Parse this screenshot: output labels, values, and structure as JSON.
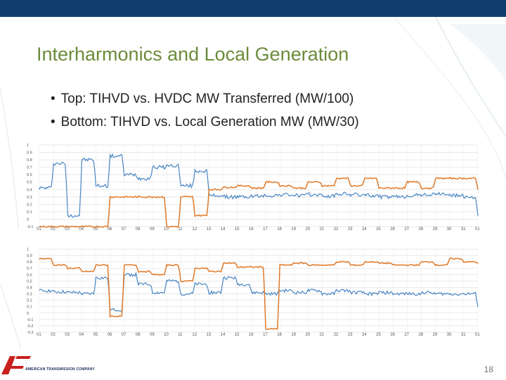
{
  "slide": {
    "title": "Interharmonics and Local Generation",
    "bullets": [
      "Top: TIHVD vs. HVDC MW Transferred (MW/100)",
      "Bottom: TIHVD vs. Local Generation MW (MW/30)"
    ],
    "page_number": "18",
    "logo_text": "AMERICAN TRANSMISSION COMPANY",
    "colors": {
      "accent_title": "#6c8b3b",
      "top_bar": "#0f3d6e",
      "series_blue": "#4a86c5",
      "series_orange": "#e07a2a",
      "logo_red": "#c8201e"
    }
  },
  "chart_data": [
    {
      "type": "line",
      "categories": [
        "01",
        "02",
        "03",
        "04",
        "05",
        "06",
        "07",
        "08",
        "09",
        "10",
        "11",
        "12",
        "13",
        "14",
        "15",
        "16",
        "17",
        "18",
        "19",
        "20",
        "21",
        "22",
        "23",
        "24",
        "25",
        "26",
        "27",
        "28",
        "29",
        "30",
        "31",
        "01"
      ],
      "ylim": [
        -0.1,
        1
      ],
      "y_ticks": [
        "1",
        "0.9",
        "0.8",
        "0.7",
        "0.6",
        "0.5",
        "0.4",
        "0.3",
        "0.2",
        "0.1",
        "0",
        "-0.1"
      ],
      "grid": true,
      "series": [
        {
          "color": "#4a86c5",
          "values": [
            0.42,
            0.75,
            0.05,
            0.8,
            0.45,
            0.85,
            0.6,
            0.55,
            0.7,
            0.72,
            0.45,
            0.65,
            0.32,
            0.3,
            0.3,
            0.31,
            0.32,
            0.33,
            0.32,
            0.33,
            0.31,
            0.34,
            0.33,
            0.32,
            0.3,
            0.3,
            0.32,
            0.33,
            0.34,
            0.32,
            0.3,
            0.05
          ]
        },
        {
          "color": "#e07a2a",
          "values": [
            -0.1,
            -0.1,
            -0.1,
            -0.1,
            -0.1,
            0.3,
            0.3,
            0.3,
            0.3,
            -0.1,
            0.3,
            0.05,
            0.4,
            0.43,
            0.45,
            0.42,
            0.5,
            0.45,
            0.42,
            0.5,
            0.45,
            0.55,
            0.45,
            0.55,
            0.42,
            0.42,
            0.5,
            0.42,
            0.55,
            0.55,
            0.55,
            0.4
          ]
        }
      ]
    },
    {
      "type": "line",
      "categories": [
        "01",
        "02",
        "03",
        "04",
        "05",
        "06",
        "07",
        "08",
        "09",
        "10",
        "11",
        "12",
        "13",
        "14",
        "15",
        "16",
        "17",
        "18",
        "19",
        "20",
        "21",
        "22",
        "23",
        "24",
        "25",
        "26",
        "27",
        "28",
        "29",
        "30",
        "31",
        "01"
      ],
      "ylim": [
        -0.3,
        1
      ],
      "y_ticks": [
        "1",
        "0.9",
        "0.8",
        "0.7",
        "0.6",
        "0.5",
        "0.4",
        "0.3",
        "0.2",
        "0.1",
        "0",
        "-0.1",
        "-0.2",
        "-0.3"
      ],
      "grid": true,
      "series": [
        {
          "color": "#4a86c5",
          "values": [
            0.35,
            0.33,
            0.32,
            0.3,
            0.55,
            0.05,
            0.6,
            0.45,
            0.32,
            0.5,
            0.3,
            0.45,
            0.32,
            0.55,
            0.45,
            0.32,
            0.3,
            0.35,
            0.32,
            0.35,
            0.3,
            0.35,
            0.32,
            0.3,
            0.32,
            0.3,
            0.3,
            0.32,
            0.3,
            0.3,
            0.3,
            0.1
          ]
        },
        {
          "color": "#e07a2a",
          "values": [
            0.85,
            0.75,
            0.7,
            0.65,
            0.75,
            -0.05,
            0.75,
            0.65,
            0.6,
            0.75,
            0.5,
            0.7,
            0.65,
            0.78,
            0.72,
            0.72,
            -0.25,
            0.75,
            0.78,
            0.75,
            0.75,
            0.8,
            0.75,
            0.8,
            0.78,
            0.75,
            0.75,
            0.8,
            0.75,
            0.85,
            0.8,
            0.78
          ]
        }
      ]
    }
  ]
}
